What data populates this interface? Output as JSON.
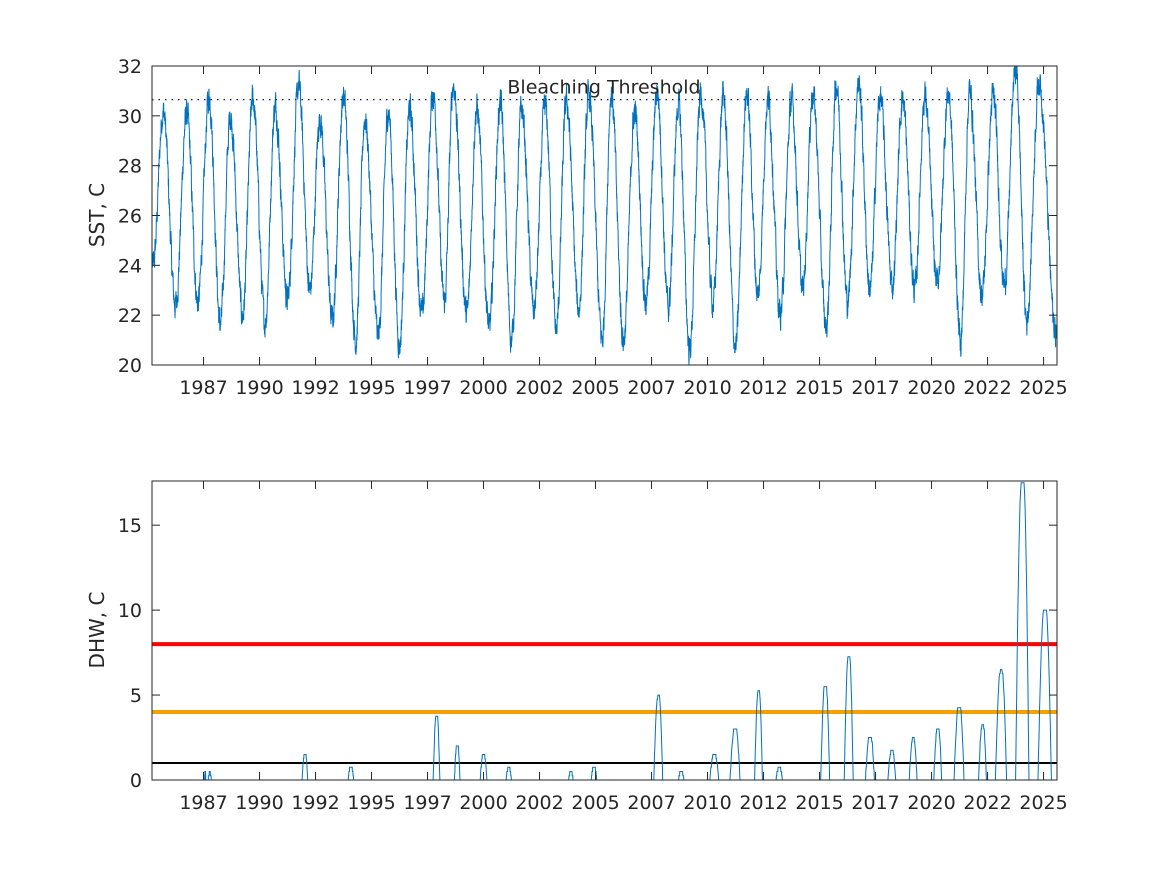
{
  "chart_data": [
    {
      "type": "line",
      "title": "",
      "xlabel": "",
      "ylabel": "SST, C",
      "xlim": [
        1984.7,
        2025.1
      ],
      "ylim": [
        20,
        32
      ],
      "xticks": [
        "1987",
        "1990",
        "1992",
        "1995",
        "1997",
        "2000",
        "2002",
        "2005",
        "2007",
        "2010",
        "2012",
        "2015",
        "2017",
        "2020",
        "2022",
        "2025"
      ],
      "xtick_values": [
        1987.0,
        1989.5,
        1992.0,
        1994.5,
        1997.0,
        1999.5,
        2002.0,
        2004.5,
        2007.0,
        2009.5,
        2012.0,
        2014.5,
        2017.0,
        2019.5,
        2022.0,
        2024.5
      ],
      "yticks": [
        "20",
        "22",
        "24",
        "26",
        "28",
        "30",
        "32"
      ],
      "ytick_values": [
        20,
        22,
        24,
        26,
        28,
        30,
        32
      ],
      "annotation": "Bleaching Threshold",
      "threshold": 30.65,
      "threshold_color": "#0000ff",
      "series_color": "#0072bd",
      "series": [
        {
          "peaks": [
            {
              "x": 1985.2,
              "y": 30.2
            },
            {
              "x": 1986.25,
              "y": 30.1
            },
            {
              "x": 1987.25,
              "y": 30.8
            },
            {
              "x": 1988.2,
              "y": 30.0
            },
            {
              "x": 1989.2,
              "y": 30.7
            },
            {
              "x": 1990.2,
              "y": 30.4
            },
            {
              "x": 1991.25,
              "y": 31.2
            },
            {
              "x": 1992.2,
              "y": 29.9
            },
            {
              "x": 1993.25,
              "y": 30.8
            },
            {
              "x": 1994.2,
              "y": 29.9
            },
            {
              "x": 1995.25,
              "y": 30.2
            },
            {
              "x": 1996.2,
              "y": 30.3
            },
            {
              "x": 1997.25,
              "y": 30.9
            },
            {
              "x": 1998.15,
              "y": 31.3
            },
            {
              "x": 1999.2,
              "y": 30.3
            },
            {
              "x": 2000.25,
              "y": 30.5
            },
            {
              "x": 2001.2,
              "y": 30.3
            },
            {
              "x": 2002.25,
              "y": 30.4
            },
            {
              "x": 2003.2,
              "y": 30.6
            },
            {
              "x": 2004.2,
              "y": 30.8
            },
            {
              "x": 2005.2,
              "y": 30.9
            },
            {
              "x": 2006.25,
              "y": 30.2
            },
            {
              "x": 2007.25,
              "y": 31.0
            },
            {
              "x": 2008.2,
              "y": 30.5
            },
            {
              "x": 2009.2,
              "y": 30.9
            },
            {
              "x": 2010.2,
              "y": 30.8
            },
            {
              "x": 2011.25,
              "y": 30.9
            },
            {
              "x": 2012.2,
              "y": 30.7
            },
            {
              "x": 2013.25,
              "y": 30.6
            },
            {
              "x": 2014.2,
              "y": 30.9
            },
            {
              "x": 2015.25,
              "y": 31.3
            },
            {
              "x": 2016.25,
              "y": 31.3
            },
            {
              "x": 2017.2,
              "y": 30.8
            },
            {
              "x": 2018.2,
              "y": 30.7
            },
            {
              "x": 2019.2,
              "y": 30.8
            },
            {
              "x": 2020.25,
              "y": 30.9
            },
            {
              "x": 2021.2,
              "y": 31.0
            },
            {
              "x": 2022.25,
              "y": 30.8
            },
            {
              "x": 2023.25,
              "y": 32.0
            },
            {
              "x": 2024.3,
              "y": 31.4
            }
          ],
          "troughs": [
            {
              "x": 1984.75,
              "y": 24.0
            },
            {
              "x": 1985.75,
              "y": 22.4
            },
            {
              "x": 1986.75,
              "y": 22.5
            },
            {
              "x": 1987.75,
              "y": 21.6
            },
            {
              "x": 1988.75,
              "y": 22.0
            },
            {
              "x": 1989.75,
              "y": 21.7
            },
            {
              "x": 1990.75,
              "y": 22.6
            },
            {
              "x": 1991.75,
              "y": 23.0
            },
            {
              "x": 1992.75,
              "y": 21.8
            },
            {
              "x": 1993.8,
              "y": 21.0
            },
            {
              "x": 1994.8,
              "y": 21.2
            },
            {
              "x": 1995.75,
              "y": 20.8
            },
            {
              "x": 1996.75,
              "y": 22.0
            },
            {
              "x": 1997.75,
              "y": 22.5
            },
            {
              "x": 1998.75,
              "y": 22.0
            },
            {
              "x": 1999.75,
              "y": 21.5
            },
            {
              "x": 2000.75,
              "y": 21.0
            },
            {
              "x": 2001.75,
              "y": 22.2
            },
            {
              "x": 2002.75,
              "y": 21.4
            },
            {
              "x": 2003.75,
              "y": 22.2
            },
            {
              "x": 2004.8,
              "y": 21.0
            },
            {
              "x": 2005.75,
              "y": 21.0
            },
            {
              "x": 2006.75,
              "y": 22.5
            },
            {
              "x": 2007.75,
              "y": 22.3
            },
            {
              "x": 2008.7,
              "y": 20.6
            },
            {
              "x": 2009.75,
              "y": 22.5
            },
            {
              "x": 2010.75,
              "y": 20.7
            },
            {
              "x": 2011.75,
              "y": 22.8
            },
            {
              "x": 2012.75,
              "y": 22.0
            },
            {
              "x": 2013.75,
              "y": 23.0
            },
            {
              "x": 2014.8,
              "y": 21.5
            },
            {
              "x": 2015.75,
              "y": 22.5
            },
            {
              "x": 2016.75,
              "y": 23.0
            },
            {
              "x": 2017.75,
              "y": 23.2
            },
            {
              "x": 2018.75,
              "y": 23.0
            },
            {
              "x": 2019.75,
              "y": 23.3
            },
            {
              "x": 2020.8,
              "y": 21.0
            },
            {
              "x": 2021.75,
              "y": 22.8
            },
            {
              "x": 2022.75,
              "y": 23.2
            },
            {
              "x": 2023.75,
              "y": 21.8
            },
            {
              "x": 2025.05,
              "y": 21.3
            }
          ]
        }
      ]
    },
    {
      "type": "line",
      "title": "",
      "xlabel": "",
      "ylabel": "DHW, C",
      "xlim": [
        1984.7,
        2025.1
      ],
      "ylim": [
        0,
        17.6
      ],
      "xticks": [
        "1987",
        "1990",
        "1992",
        "1995",
        "1997",
        "2000",
        "2002",
        "2005",
        "2007",
        "2010",
        "2012",
        "2015",
        "2017",
        "2020",
        "2022",
        "2025"
      ],
      "xtick_values": [
        1987.0,
        1989.5,
        1992.0,
        1994.5,
        1997.0,
        1999.5,
        2002.0,
        2004.5,
        2007.0,
        2009.5,
        2012.0,
        2014.5,
        2017.0,
        2019.5,
        2022.0,
        2024.5
      ],
      "yticks": [
        "0",
        "5",
        "10",
        "15"
      ],
      "ytick_values": [
        0,
        5,
        10,
        15
      ],
      "series_color": "#0072bd",
      "reference_lines": [
        {
          "y": 8,
          "color": "#ff0000"
        },
        {
          "y": 4,
          "color": "#f5a000"
        },
        {
          "y": 1,
          "color": "#000000"
        }
      ],
      "series": [
        {
          "events": [
            {
              "start": 1987.05,
              "peak": 0.5,
              "end": 1987.1
            },
            {
              "start": 1987.2,
              "peak": 0.4,
              "end": 1987.35
            },
            {
              "start": 1991.4,
              "peak": 1.6,
              "end": 1991.65
            },
            {
              "start": 1993.45,
              "peak": 0.8,
              "end": 1993.7
            },
            {
              "start": 1997.25,
              "peak": 3.8,
              "end": 1997.55
            },
            {
              "start": 1998.2,
              "peak": 2.1,
              "end": 1998.45
            },
            {
              "start": 1999.35,
              "peak": 1.5,
              "end": 1999.65
            },
            {
              "start": 2000.5,
              "peak": 0.7,
              "end": 2000.75
            },
            {
              "start": 2003.3,
              "peak": 0.5,
              "end": 2003.5
            },
            {
              "start": 2004.3,
              "peak": 0.8,
              "end": 2004.55
            },
            {
              "start": 2007.1,
              "peak": 4.9,
              "end": 2007.5
            },
            {
              "start": 2008.2,
              "peak": 0.5,
              "end": 2008.45
            },
            {
              "start": 2009.6,
              "peak": 1.5,
              "end": 2010.0
            },
            {
              "start": 2010.5,
              "peak": 3.0,
              "end": 2010.95
            },
            {
              "start": 2011.6,
              "peak": 5.2,
              "end": 2011.95
            },
            {
              "start": 2012.55,
              "peak": 0.7,
              "end": 2012.85
            },
            {
              "start": 2014.55,
              "peak": 5.6,
              "end": 2014.95
            },
            {
              "start": 2015.6,
              "peak": 7.3,
              "end": 2016.0
            },
            {
              "start": 2016.55,
              "peak": 2.6,
              "end": 2016.95
            },
            {
              "start": 2017.55,
              "peak": 1.7,
              "end": 2017.9
            },
            {
              "start": 2018.5,
              "peak": 2.4,
              "end": 2018.85
            },
            {
              "start": 2019.6,
              "peak": 3.1,
              "end": 2019.95
            },
            {
              "start": 2020.5,
              "peak": 4.3,
              "end": 2020.95
            },
            {
              "start": 2021.6,
              "peak": 3.2,
              "end": 2021.95
            },
            {
              "start": 2022.35,
              "peak": 6.4,
              "end": 2022.85
            },
            {
              "start": 2023.25,
              "peak": 17.6,
              "end": 2023.85
            },
            {
              "start": 2024.25,
              "peak": 10.0,
              "end": 2024.85
            }
          ]
        }
      ]
    }
  ]
}
